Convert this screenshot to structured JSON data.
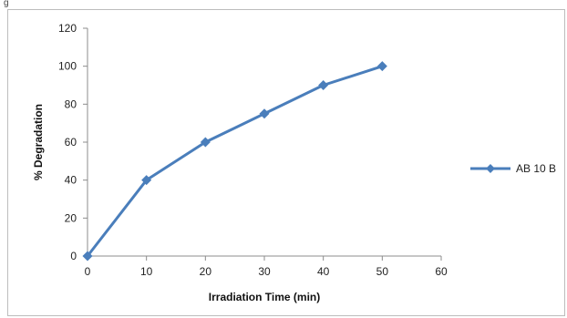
{
  "figure": {
    "top_glyph": "g"
  },
  "chart_data": {
    "type": "line",
    "title": "",
    "xlabel": "Irradiation Time (min)",
    "ylabel": "% Degradation",
    "xlim": [
      0,
      60
    ],
    "ylim": [
      0,
      120
    ],
    "xticks": [
      0,
      10,
      20,
      30,
      40,
      50,
      60
    ],
    "yticks": [
      0,
      20,
      40,
      60,
      80,
      100,
      120
    ],
    "grid": false,
    "legend_position": "right",
    "series": [
      {
        "name": "AB 10 B",
        "color": "#4a7ebb",
        "marker": "diamond",
        "x": [
          0,
          10,
          20,
          30,
          40,
          50
        ],
        "y": [
          0,
          40,
          60,
          75,
          90,
          100
        ]
      }
    ]
  }
}
